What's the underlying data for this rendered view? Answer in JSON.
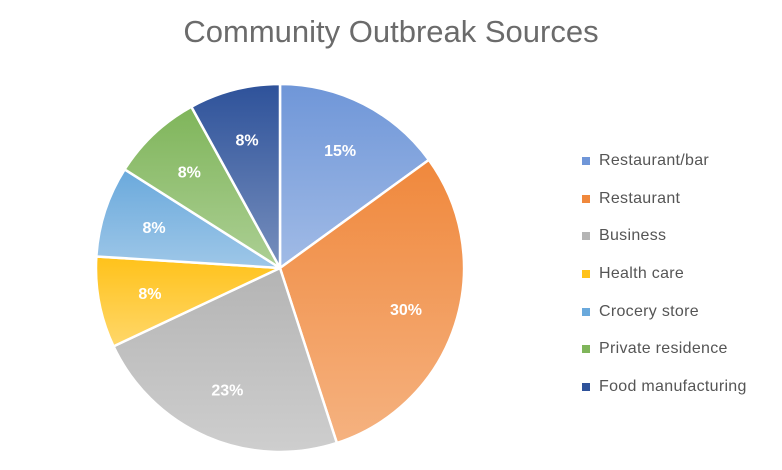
{
  "chart_data": {
    "type": "pie",
    "title": "Community Outbreak Sources",
    "categories": [
      "Restaurant/bar",
      "Restaurant",
      "Business",
      "Health care",
      "Crocery store",
      "Private residence",
      "Food manufacturing"
    ],
    "values": [
      15,
      30,
      23,
      8,
      8,
      8,
      8
    ],
    "labels": [
      "15%",
      "30%",
      "23%",
      "8%",
      "8%",
      "8%",
      "8%"
    ],
    "colors": [
      "#6f96d8",
      "#f0883c",
      "#b4b4b4",
      "#ffc21a",
      "#6aa9dc",
      "#7fb55a",
      "#2e529a"
    ],
    "legend_position": "right",
    "start": "top, clockwise"
  }
}
